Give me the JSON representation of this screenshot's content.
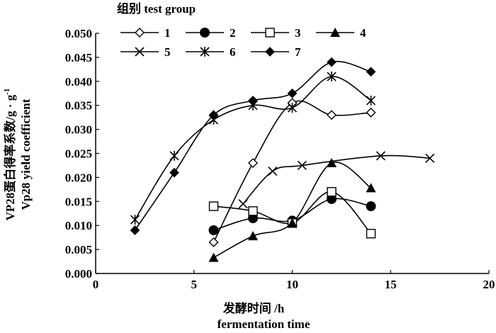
{
  "chart_data": {
    "type": "line",
    "xlabel_cn": "发酵时间 /h",
    "xlabel_en": "fermentation time",
    "ylabel_cn": "VP28蛋白得率系数/g · g",
    "ylabel_cn_sup": "-1",
    "ylabel_en": "Vp28 yield coefficient",
    "legend_title": "组别 test group",
    "xlim": [
      0,
      20
    ],
    "ylim": [
      0.0,
      0.05
    ],
    "xticks": [
      "0",
      "5",
      "10",
      "15",
      "20"
    ],
    "yticks": [
      "0.000",
      "0.005",
      "0.010",
      "0.015",
      "0.020",
      "0.025",
      "0.030",
      "0.035",
      "0.040",
      "0.045",
      "0.050"
    ],
    "legend_placement": "top",
    "grid": false,
    "series": [
      {
        "name": "1",
        "marker": "diamond-open",
        "x": [
          6,
          8,
          10,
          12,
          14
        ],
        "y": [
          0.0065,
          0.023,
          0.0355,
          0.033,
          0.0335
        ]
      },
      {
        "name": "2",
        "marker": "circle-filled",
        "x": [
          6,
          8,
          10,
          12,
          14
        ],
        "y": [
          0.009,
          0.0115,
          0.011,
          0.0155,
          0.014
        ]
      },
      {
        "name": "3",
        "marker": "square-open",
        "x": [
          6,
          8,
          10,
          12,
          14
        ],
        "y": [
          0.014,
          0.013,
          0.0105,
          0.017,
          0.0083
        ]
      },
      {
        "name": "4",
        "marker": "triangle-filled",
        "x": [
          6,
          8,
          10,
          12,
          14
        ],
        "y": [
          0.0033,
          0.0078,
          0.0105,
          0.023,
          0.0178
        ]
      },
      {
        "name": "5",
        "marker": "x",
        "x": [
          7.5,
          9,
          10.5,
          14.5,
          17
        ],
        "y": [
          0.0145,
          0.0213,
          0.0225,
          0.0245,
          0.024
        ]
      },
      {
        "name": "6",
        "marker": "asterisk",
        "x": [
          2,
          4,
          6,
          8,
          10,
          12,
          14
        ],
        "y": [
          0.0112,
          0.0245,
          0.032,
          0.035,
          0.0345,
          0.041,
          0.036
        ]
      },
      {
        "name": "7",
        "marker": "diamond-filled",
        "x": [
          2,
          4,
          6,
          8,
          10,
          12,
          14
        ],
        "y": [
          0.009,
          0.021,
          0.033,
          0.036,
          0.0375,
          0.044,
          0.042
        ]
      }
    ]
  }
}
